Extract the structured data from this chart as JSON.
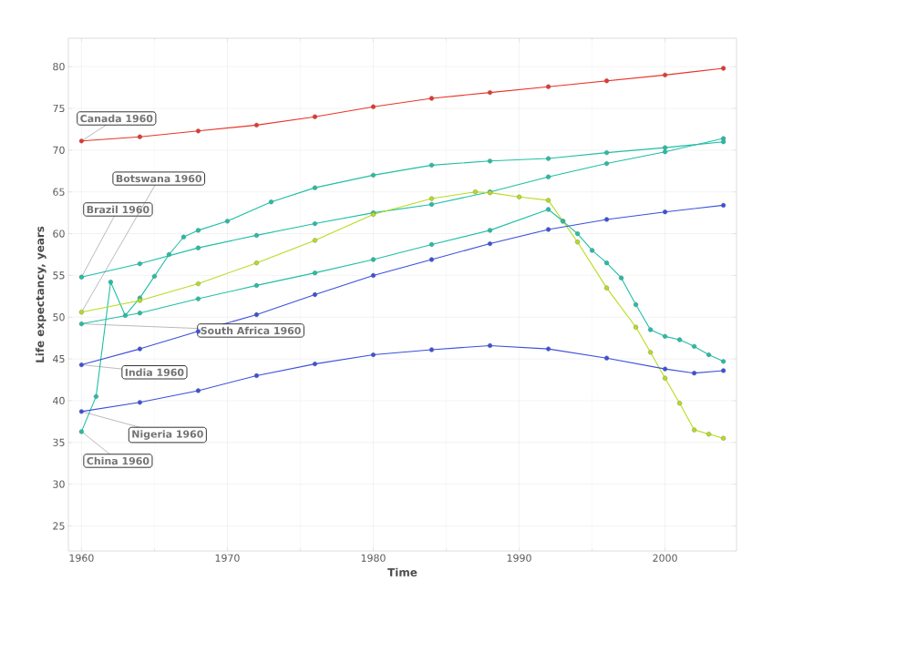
{
  "chart_data": {
    "type": "line",
    "xlabel": "Time",
    "ylabel": "Life expectancy, years",
    "xlim": [
      1959.1,
      2004.9
    ],
    "ylim": [
      22,
      83.4
    ],
    "xticks": [
      1960,
      1970,
      1980,
      1990,
      2000
    ],
    "yticks": [
      25,
      30,
      35,
      40,
      45,
      50,
      55,
      60,
      65,
      70,
      75,
      80
    ],
    "grid": true,
    "marker": "circle",
    "line_style": "solid",
    "legend": false,
    "series": [
      {
        "name": "Canada 1960",
        "color": "#e8352b",
        "x": [
          1960,
          1964,
          1968,
          1972,
          1976,
          1980,
          1984,
          1988,
          1992,
          1996,
          2000,
          2004
        ],
        "values": [
          71.1,
          71.6,
          72.3,
          73.0,
          74.0,
          75.2,
          76.2,
          76.9,
          77.6,
          78.3,
          79.0,
          79.8
        ]
      },
      {
        "name": "Brazil 1960",
        "color": "#1fbfa6",
        "x": [
          1960,
          1964,
          1968,
          1972,
          1976,
          1980,
          1984,
          1988,
          1992,
          1996,
          2000,
          2004
        ],
        "values": [
          54.8,
          56.4,
          58.3,
          59.8,
          61.2,
          62.5,
          63.5,
          65.0,
          66.8,
          68.4,
          69.8,
          71.4
        ]
      },
      {
        "name": "China 1960",
        "color": "#1fbfa6",
        "x": [
          1960,
          1961,
          1962,
          1963,
          1964,
          1965,
          1966,
          1967,
          1968,
          1970,
          1973,
          1976,
          1980,
          1984,
          1988,
          1992,
          1996,
          2000,
          2004
        ],
        "values": [
          36.3,
          40.5,
          54.2,
          50.2,
          52.3,
          54.9,
          57.5,
          59.6,
          60.4,
          61.5,
          63.8,
          65.5,
          67.0,
          68.2,
          68.7,
          69.0,
          69.7,
          70.3,
          71.0
        ]
      },
      {
        "name": "Botswana 1960",
        "color": "#b5dd1c",
        "x": [
          1960,
          1964,
          1968,
          1972,
          1976,
          1980,
          1984,
          1987,
          1988,
          1990,
          1992,
          1993,
          1994,
          1996,
          1998,
          1999,
          2000,
          2001,
          2002,
          2003,
          2004
        ],
        "values": [
          50.6,
          52.0,
          54.0,
          56.5,
          59.2,
          62.3,
          64.2,
          65.0,
          64.9,
          64.4,
          64.0,
          61.5,
          59.0,
          53.5,
          48.8,
          45.8,
          42.7,
          39.7,
          36.5,
          36.0,
          35.5
        ]
      },
      {
        "name": "South Africa 1960",
        "color": "#1fbfa6",
        "x": [
          1960,
          1964,
          1968,
          1972,
          1976,
          1980,
          1984,
          1988,
          1992,
          1993,
          1994,
          1995,
          1996,
          1997,
          1998,
          1999,
          2000,
          2001,
          2002,
          2003,
          2004
        ],
        "values": [
          49.2,
          50.5,
          52.2,
          53.8,
          55.3,
          56.9,
          58.7,
          60.4,
          62.9,
          61.5,
          60.0,
          58.0,
          56.5,
          54.7,
          51.5,
          48.5,
          47.7,
          47.3,
          46.5,
          45.5,
          44.7
        ]
      },
      {
        "name": "India 1960",
        "color": "#3c4fdc",
        "x": [
          1960,
          1964,
          1968,
          1972,
          1976,
          1980,
          1984,
          1988,
          1992,
          1996,
          2000,
          2004
        ],
        "values": [
          44.3,
          46.2,
          48.3,
          50.3,
          52.7,
          55.0,
          56.9,
          58.8,
          60.5,
          61.7,
          62.6,
          63.4
        ]
      },
      {
        "name": "Nigeria 1960",
        "color": "#3c4fdc",
        "x": [
          1960,
          1964,
          1968,
          1972,
          1976,
          1980,
          1984,
          1988,
          1992,
          1996,
          2000,
          2002,
          2004
        ],
        "values": [
          38.7,
          39.8,
          41.2,
          43.0,
          44.4,
          45.5,
          46.1,
          46.6,
          46.2,
          45.1,
          43.8,
          43.3,
          43.6
        ]
      }
    ]
  }
}
